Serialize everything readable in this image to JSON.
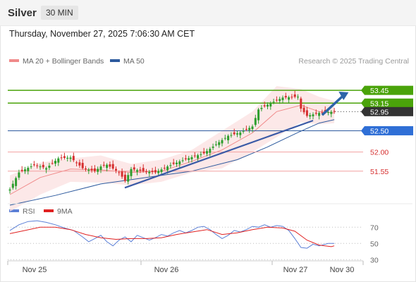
{
  "header": {
    "symbol": "Silver",
    "timeframe": "30 MIN"
  },
  "timestamp": "Thursday, November 27, 2025 7:06:30 AM CET",
  "legend": {
    "ma20_label": "MA 20 + Bollinger Bands",
    "ma50_label": "MA 50",
    "ma20_color": "#f08a8a",
    "ma50_color": "#2d5a9e",
    "copyright": "Research © 2025 Trading Central"
  },
  "rsi_legend": {
    "rsi_label": "RSI",
    "ma_label": "9MA",
    "rsi_color": "#5b7fd6",
    "ma_color": "#e02020"
  },
  "colors": {
    "bull": "#2e9e2e",
    "bear": "#d62f2f",
    "resistance": "#4aa30a",
    "pivot": "#2d5a9e",
    "support": "#f2a0a0",
    "trend": "#3a5aa6",
    "arrow": "#2d64a8",
    "current": "#333333"
  },
  "chart_data": [
    {
      "type": "candlestick",
      "x_labels": [
        "Nov 25",
        "Nov 26",
        "Nov 27",
        "Nov 30"
      ],
      "ylim": [
        50.85,
        53.95
      ],
      "levels": [
        {
          "value": 53.45,
          "label": "53.45",
          "kind": "resistance"
        },
        {
          "value": 53.15,
          "label": "53.15",
          "kind": "resistance"
        },
        {
          "value": 52.95,
          "label": "52.95",
          "kind": "current"
        },
        {
          "value": 52.5,
          "label": "52.50",
          "kind": "pivot"
        },
        {
          "value": 52.0,
          "label": "52.00",
          "kind": "support"
        },
        {
          "value": 51.55,
          "label": "51.55",
          "kind": "support"
        }
      ],
      "trendline": [
        [
          0,
          51.23
        ],
        [
          100,
          52.74
        ]
      ],
      "forecast_arrow": [
        [
          103,
          52.87
        ],
        [
          111,
          53.37
        ]
      ],
      "close_path": [
        [
          0,
          51.12
        ],
        [
          3,
          51.52
        ],
        [
          8,
          51.7
        ],
        [
          12,
          51.62
        ],
        [
          16,
          51.85
        ],
        [
          20,
          51.87
        ],
        [
          24,
          51.62
        ],
        [
          28,
          51.55
        ],
        [
          30,
          51.66
        ],
        [
          32,
          51.7
        ],
        [
          36,
          51.52
        ],
        [
          38,
          51.32
        ],
        [
          40,
          51.6
        ],
        [
          44,
          51.55
        ],
        [
          48,
          51.52
        ],
        [
          52,
          51.66
        ],
        [
          56,
          51.78
        ],
        [
          60,
          51.88
        ],
        [
          64,
          51.97
        ],
        [
          68,
          52.18
        ],
        [
          72,
          52.38
        ],
        [
          76,
          52.46
        ],
        [
          80,
          52.6
        ],
        [
          82,
          53.0
        ],
        [
          86,
          53.15
        ],
        [
          90,
          53.28
        ],
        [
          95,
          53.3
        ],
        [
          96,
          53.02
        ],
        [
          98,
          52.85
        ],
        [
          102,
          52.92
        ],
        [
          107,
          52.95
        ]
      ],
      "ma20_path": [
        [
          0,
          51.0
        ],
        [
          10,
          51.4
        ],
        [
          20,
          51.6
        ],
        [
          30,
          51.58
        ],
        [
          40,
          51.52
        ],
        [
          50,
          51.55
        ],
        [
          60,
          51.78
        ],
        [
          70,
          52.05
        ],
        [
          80,
          52.45
        ],
        [
          88,
          52.95
        ],
        [
          96,
          53.1
        ],
        [
          102,
          52.95
        ],
        [
          107,
          52.92
        ]
      ],
      "band_upper": [
        [
          0,
          51.45
        ],
        [
          10,
          51.75
        ],
        [
          20,
          51.85
        ],
        [
          30,
          51.92
        ],
        [
          40,
          51.72
        ],
        [
          50,
          51.82
        ],
        [
          60,
          52.05
        ],
        [
          70,
          52.5
        ],
        [
          80,
          52.95
        ],
        [
          88,
          53.55
        ],
        [
          96,
          53.48
        ],
        [
          102,
          53.3
        ],
        [
          107,
          53.2
        ]
      ],
      "band_lower": [
        [
          0,
          50.6
        ],
        [
          10,
          51.0
        ],
        [
          20,
          51.3
        ],
        [
          30,
          51.28
        ],
        [
          40,
          51.22
        ],
        [
          50,
          51.3
        ],
        [
          60,
          51.52
        ],
        [
          70,
          51.62
        ],
        [
          80,
          52.0
        ],
        [
          88,
          52.35
        ],
        [
          96,
          52.7
        ],
        [
          102,
          52.65
        ],
        [
          107,
          52.68
        ]
      ],
      "ma50_path": [
        [
          0,
          50.75
        ],
        [
          15,
          50.98
        ],
        [
          30,
          51.25
        ],
        [
          45,
          51.4
        ],
        [
          60,
          51.55
        ],
        [
          75,
          51.82
        ],
        [
          85,
          52.12
        ],
        [
          95,
          52.46
        ],
        [
          102,
          52.68
        ],
        [
          107,
          52.76
        ]
      ]
    },
    {
      "type": "line",
      "name_rsi": "RSI",
      "name_ma": "9MA",
      "ylim": [
        25,
        85
      ],
      "levels": [
        {
          "value": 70,
          "label": "70"
        },
        {
          "value": 50,
          "label": "50"
        },
        {
          "value": 30,
          "label": "30"
        }
      ],
      "rsi_path": [
        [
          0,
          66
        ],
        [
          3,
          73
        ],
        [
          6,
          77
        ],
        [
          9,
          78
        ],
        [
          12,
          76
        ],
        [
          15,
          73
        ],
        [
          18,
          69
        ],
        [
          21,
          66
        ],
        [
          24,
          58
        ],
        [
          26,
          52
        ],
        [
          28,
          56
        ],
        [
          30,
          60
        ],
        [
          32,
          52
        ],
        [
          34,
          47
        ],
        [
          36,
          54
        ],
        [
          38,
          58
        ],
        [
          40,
          52
        ],
        [
          42,
          60
        ],
        [
          44,
          57
        ],
        [
          46,
          54
        ],
        [
          48,
          57
        ],
        [
          50,
          61
        ],
        [
          52,
          59
        ],
        [
          54,
          63
        ],
        [
          56,
          66
        ],
        [
          58,
          63
        ],
        [
          60,
          66
        ],
        [
          62,
          70
        ],
        [
          64,
          71
        ],
        [
          66,
          67
        ],
        [
          68,
          61
        ],
        [
          70,
          56
        ],
        [
          72,
          60
        ],
        [
          74,
          66
        ],
        [
          76,
          64
        ],
        [
          78,
          67
        ],
        [
          80,
          71
        ],
        [
          82,
          70
        ],
        [
          84,
          73
        ],
        [
          86,
          70
        ],
        [
          88,
          72
        ],
        [
          90,
          71
        ],
        [
          92,
          66
        ],
        [
          94,
          56
        ],
        [
          96,
          45
        ],
        [
          98,
          44
        ],
        [
          100,
          49
        ],
        [
          102,
          47
        ],
        [
          105,
          50
        ],
        [
          107,
          50
        ]
      ],
      "ma_path": [
        [
          0,
          62
        ],
        [
          5,
          66
        ],
        [
          10,
          70
        ],
        [
          15,
          70
        ],
        [
          20,
          67
        ],
        [
          25,
          61
        ],
        [
          30,
          57
        ],
        [
          35,
          55
        ],
        [
          40,
          56
        ],
        [
          45,
          56
        ],
        [
          50,
          57
        ],
        [
          55,
          61
        ],
        [
          60,
          64
        ],
        [
          65,
          67
        ],
        [
          70,
          61
        ],
        [
          75,
          63
        ],
        [
          80,
          67
        ],
        [
          85,
          70
        ],
        [
          90,
          69
        ],
        [
          94,
          65
        ],
        [
          98,
          54
        ],
        [
          102,
          48
        ],
        [
          106,
          46
        ],
        [
          107,
          47
        ]
      ]
    }
  ]
}
